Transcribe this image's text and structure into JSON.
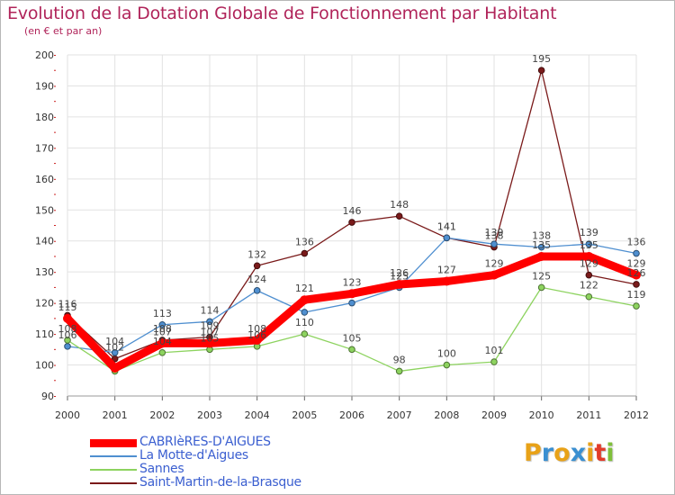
{
  "title": "Evolution de la Dotation Globale de Fonctionnement par Habitant",
  "subtitle": "(en € et par an)",
  "logo": {
    "text": "Proxiti",
    "letter_colors": [
      "#e8a218",
      "#3a8fd1",
      "#e8a218",
      "#3a8fd1",
      "#e8a218",
      "#e23b2a",
      "#7fbf3a"
    ]
  },
  "chart_data": {
    "type": "line",
    "x": [
      2000,
      2001,
      2002,
      2003,
      2004,
      2005,
      2006,
      2007,
      2008,
      2009,
      2010,
      2011,
      2012
    ],
    "xticks": [
      "2000",
      "2001",
      "2002",
      "2003",
      "2004",
      "2005",
      "2006",
      "2007",
      "2008",
      "2009",
      "2010",
      "2011",
      "2012"
    ],
    "ylim": [
      90,
      200
    ],
    "yticks": [
      "90",
      "100",
      "110",
      "120",
      "130",
      "140",
      "150",
      "160",
      "170",
      "180",
      "190",
      "200"
    ],
    "legend_position": "bottom-left",
    "series": [
      {
        "name": "Saint-Martin-de-la-Brasque",
        "color": "#7a1a1a",
        "values": [
          116,
          102,
          108,
          109,
          132,
          136,
          146,
          148,
          141,
          138,
          195,
          129,
          126
        ],
        "labels": [
          "116",
          "102",
          "108",
          "109",
          "132",
          "136",
          "146",
          "148",
          "141",
          "138",
          "195",
          "129",
          "126"
        ]
      },
      {
        "name": "La Motte-d'Aigues",
        "color": "#4f8fd0",
        "values": [
          106,
          104,
          113,
          114,
          124,
          117,
          120,
          125,
          141,
          139,
          138,
          139,
          136
        ],
        "labels": [
          "106",
          "104",
          "113",
          "114",
          "124",
          "",
          "",
          "125",
          "141",
          "139",
          "138",
          "139",
          "136"
        ]
      },
      {
        "name": "Sannes",
        "color": "#8dd35f",
        "values": [
          108,
          98,
          104,
          105,
          106,
          110,
          105,
          98,
          100,
          101,
          125,
          122,
          119
        ],
        "labels": [
          "108",
          "",
          "104",
          "105",
          "106",
          "110",
          "105",
          "98",
          "100",
          "101",
          "125",
          "122",
          "119"
        ]
      },
      {
        "name": "CABRIèRES-D'AIGUES",
        "color": "#ff0000",
        "values": [
          115,
          99,
          107,
          107,
          108,
          121,
          123,
          126,
          127,
          129,
          135,
          135,
          129
        ],
        "labels": [
          "115",
          "",
          "107",
          "107",
          "108",
          "121",
          "123",
          "126",
          "127",
          "129",
          "135",
          "135",
          "129"
        ]
      }
    ]
  },
  "legend": [
    {
      "label": "CABRIèRES-D'AIGUES",
      "color": "#ff0000",
      "swatch_style": "thick"
    },
    {
      "label": "La Motte-d'Aigues",
      "color": "#4f8fd0",
      "swatch_style": "thin"
    },
    {
      "label": "Sannes",
      "color": "#8dd35f",
      "swatch_style": "thin"
    },
    {
      "label": "Saint-Martin-de-la-Brasque",
      "color": "#7a1a1a",
      "swatch_style": "thin"
    }
  ]
}
